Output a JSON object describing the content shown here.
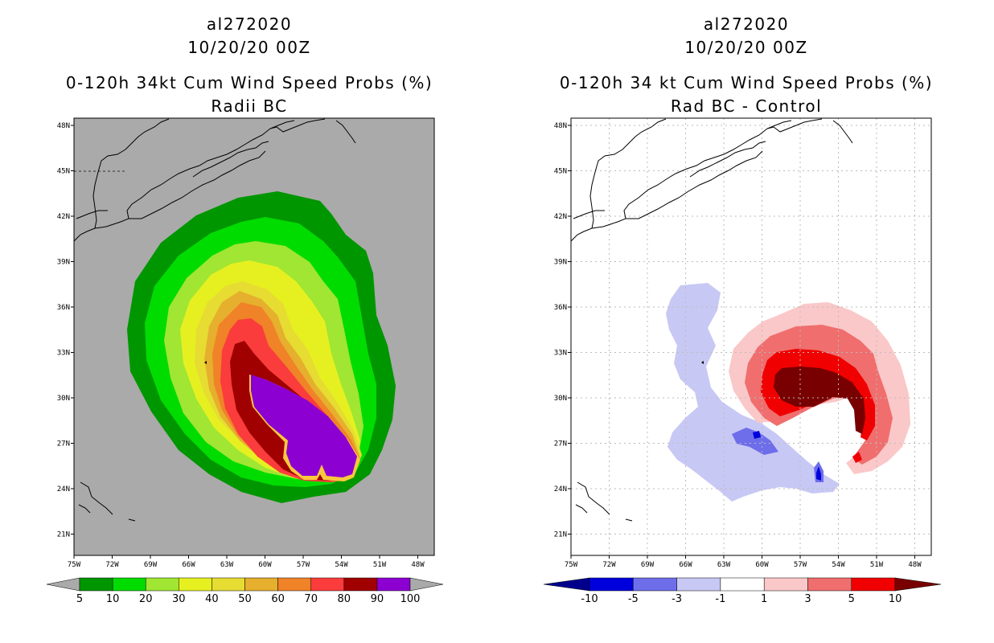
{
  "left_panel": {
    "title_lines": [
      "al272020",
      "10/20/20 00Z",
      "0-120h 34kt Cum Wind Speed Probs (%)",
      "Radii BC"
    ],
    "lat_labels": [
      "48N",
      "45N",
      "42N",
      "39N",
      "36N",
      "33N",
      "30N",
      "27N",
      "24N",
      "21N"
    ],
    "lon_labels": [
      "75W",
      "72W",
      "69W",
      "66W",
      "63W",
      "60W",
      "57W",
      "54W",
      "51W",
      "48W"
    ],
    "background_color": "#aaaaaa",
    "colorbar": {
      "labels": [
        "5",
        "10",
        "20",
        "30",
        "40",
        "50",
        "60",
        "70",
        "80",
        "90",
        "100"
      ],
      "colors": [
        "#009600",
        "#00dc00",
        "#a0e632",
        "#e6f020",
        "#e6dc32",
        "#e6af2d",
        "#f08228",
        "#fa3c3c",
        "#a00000",
        "#8c00d2"
      ]
    }
  },
  "right_panel": {
    "title_lines": [
      "al272020",
      "10/20/20 00Z",
      "0-120h 34 kt Cum Wind Speed Probs (%)",
      "Rad BC - Control"
    ],
    "lat_labels": [
      "48N",
      "45N",
      "42N",
      "39N",
      "36N",
      "33N",
      "30N",
      "27N",
      "24N",
      "21N"
    ],
    "lon_labels": [
      "75W",
      "72W",
      "69W",
      "66W",
      "63W",
      "60W",
      "57W",
      "54W",
      "51W",
      "48W"
    ],
    "background_color": "#ffffff",
    "colorbar": {
      "labels": [
        "-10",
        "-5",
        "-3",
        "-1",
        "1",
        "3",
        "5",
        "10"
      ],
      "colors": [
        "#00008c",
        "#0000dc",
        "#6e6eeb",
        "#c8c8f5",
        "#ffffff",
        "#fac8c8",
        "#f06e6e",
        "#f00000",
        "#780000"
      ]
    }
  }
}
